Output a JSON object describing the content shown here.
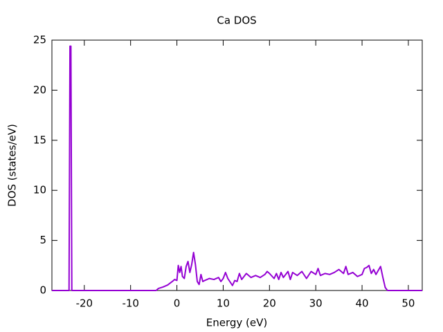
{
  "chart_data": {
    "type": "line",
    "title": "Ca DOS",
    "x_label": "Energy (eV)",
    "y_label": "DOS (states/eV)",
    "x": [
      -27,
      -23.3,
      -23.1,
      -22.9,
      -22.7,
      -4.5,
      -4,
      -3,
      -2,
      -1,
      -0.5,
      0,
      0.3,
      0.6,
      0.9,
      1.2,
      1.6,
      2,
      2.4,
      2.8,
      3.2,
      3.6,
      4,
      4.4,
      4.8,
      5.2,
      5.6,
      6,
      7,
      8,
      9,
      9.5,
      10,
      10.5,
      11,
      12,
      12.5,
      13,
      13.5,
      14,
      15,
      15.5,
      16,
      17,
      18,
      19,
      19.5,
      20,
      21,
      21.5,
      22,
      22.5,
      23,
      24,
      24.5,
      25,
      26,
      27,
      28,
      29,
      30,
      30.5,
      31,
      32,
      33,
      34,
      35,
      36,
      36.5,
      37,
      38,
      39,
      40,
      40.5,
      41,
      41.5,
      42,
      42.5,
      43,
      43.5,
      44,
      44.5,
      45,
      45.5,
      53
    ],
    "values": [
      0,
      0,
      24.4,
      24.4,
      0,
      0,
      0.2,
      0.35,
      0.55,
      0.9,
      1.1,
      1.0,
      2.5,
      1.8,
      2.4,
      1.4,
      1.2,
      2.4,
      2.9,
      1.8,
      2.6,
      3.8,
      2.6,
      0.9,
      0.6,
      1.6,
      0.9,
      1.0,
      1.2,
      1.1,
      1.3,
      0.9,
      1.2,
      1.8,
      1.2,
      0.5,
      1.0,
      0.9,
      1.7,
      1.1,
      1.7,
      1.5,
      1.3,
      1.5,
      1.3,
      1.6,
      1.9,
      1.7,
      1.2,
      1.7,
      1.1,
      1.8,
      1.3,
      1.9,
      1.1,
      1.8,
      1.5,
      1.9,
      1.2,
      1.9,
      1.6,
      2.2,
      1.5,
      1.7,
      1.6,
      1.8,
      2.1,
      1.7,
      2.4,
      1.6,
      1.8,
      1.4,
      1.6,
      2.2,
      2.3,
      2.5,
      1.7,
      2.1,
      1.6,
      2.0,
      2.4,
      1.3,
      0.3,
      0,
      0
    ],
    "color": "#9400d3",
    "xlim": [
      -27,
      53
    ],
    "xticks": [
      -20,
      -10,
      0,
      10,
      20,
      30,
      40,
      50
    ],
    "ylim": [
      0,
      25
    ],
    "yticks": [
      0,
      5,
      10,
      15,
      20,
      25
    ]
  }
}
